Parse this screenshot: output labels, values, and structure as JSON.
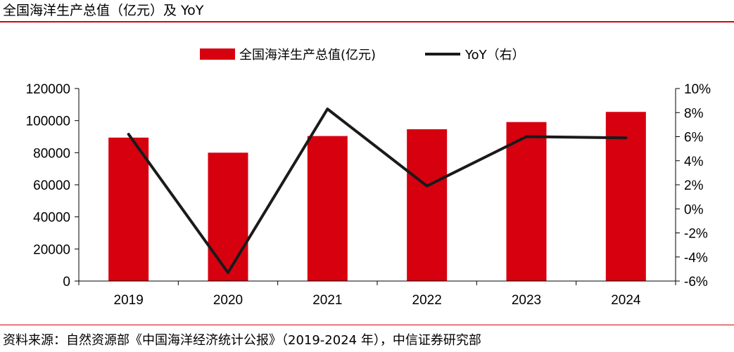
{
  "page": {
    "title": "全国海洋生产总值（亿元）及 YoY",
    "source": "资料来源：自然资源部《中国海洋经济统计公报》（2019-2024 年），中信证券研究部"
  },
  "colors": {
    "bar": "#d7000f",
    "line": "#1a1a1a",
    "accent": "#d7000f"
  },
  "chart_data": {
    "type": "bar",
    "title": "全国海洋生产总值（亿元）及 YoY",
    "categories": [
      "2019",
      "2020",
      "2021",
      "2022",
      "2023",
      "2024"
    ],
    "series": [
      {
        "name": "全国海洋生产总值(亿元)",
        "type": "bar",
        "axis": "left",
        "values": [
          89415,
          80010,
          90385,
          94628,
          99097,
          105438
        ]
      },
      {
        "name": "YoY（右）",
        "type": "line",
        "axis": "right",
        "values": [
          6.2,
          -5.3,
          8.3,
          1.9,
          6.0,
          5.9
        ]
      }
    ],
    "left_axis": {
      "min": 0,
      "max": 120000,
      "ticks": [
        0,
        20000,
        40000,
        60000,
        80000,
        100000,
        120000
      ],
      "tick_labels": [
        "0",
        "20000",
        "40000",
        "60000",
        "80000",
        "100000",
        "120000"
      ]
    },
    "right_axis": {
      "min": -6,
      "max": 10,
      "ticks": [
        -6,
        -4,
        -2,
        0,
        2,
        4,
        6,
        8,
        10
      ],
      "tick_labels": [
        "-6%",
        "-4%",
        "-2%",
        "0%",
        "2%",
        "4%",
        "6%",
        "8%",
        "10%"
      ]
    },
    "xlabel": "",
    "ylabel": "",
    "grid": false,
    "legend_position": "top-center"
  }
}
